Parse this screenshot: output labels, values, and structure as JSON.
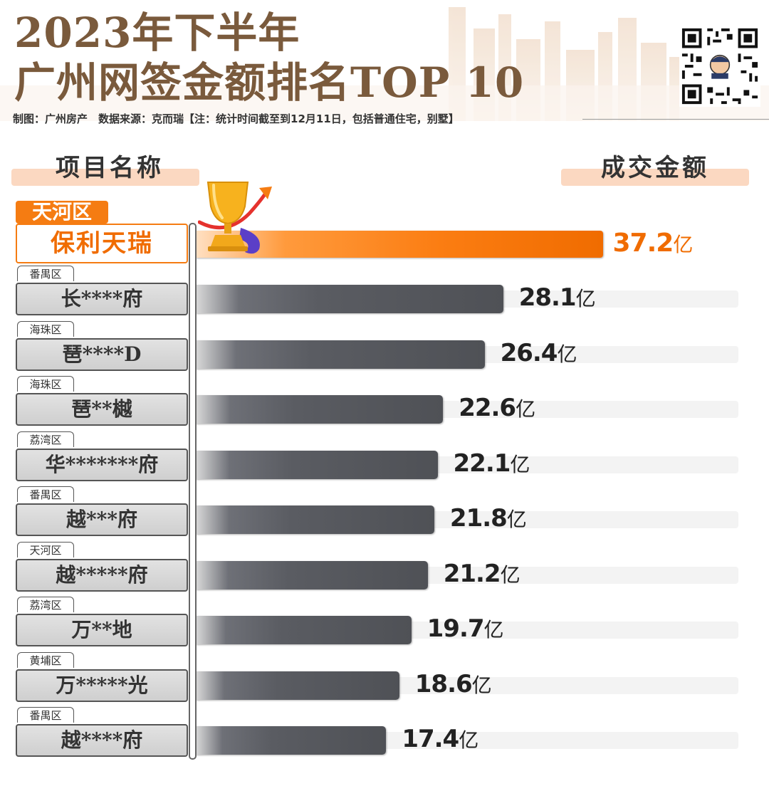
{
  "header": {
    "title_line1": "2023年下半年",
    "title_line2": "广州网签金额排名TOP 10",
    "credit": "制图：广州房产　数据来源：克而瑞【注：统计时间截至到12月11日，包括普通住宅，别墅】"
  },
  "columns": {
    "name": "项目名称",
    "amount": "成交金额"
  },
  "unit": "亿",
  "colors": {
    "accent": "#f57c12",
    "title": "#7a5a3c",
    "bar": "#55575c",
    "pill": "#fbd8c1"
  },
  "icons": [
    "qr-code-icon",
    "trophy-icon"
  ],
  "chart_data": {
    "type": "bar",
    "orientation": "horizontal",
    "categories": [
      "保利天瑞",
      "长****府",
      "琶****D",
      "琶**樾",
      "华*******府",
      "越***府",
      "越*****府",
      "万**地",
      "万*****光",
      "越****府"
    ],
    "districts": [
      "天河区",
      "番禺区",
      "海珠区",
      "海珠区",
      "荔湾区",
      "番禺区",
      "天河区",
      "荔湾区",
      "黄埔区",
      "番禺区"
    ],
    "values": [
      37.2,
      28.1,
      26.4,
      22.6,
      22.1,
      21.8,
      21.2,
      19.7,
      18.6,
      17.4
    ],
    "labels": [
      "37.2",
      "28.1",
      "26.4",
      "22.6",
      "22.1",
      "21.8",
      "21.2",
      "19.7",
      "18.6",
      "17.4"
    ],
    "unit": "亿",
    "xlim": [
      0,
      46.8
    ],
    "highlight_index": 0
  }
}
